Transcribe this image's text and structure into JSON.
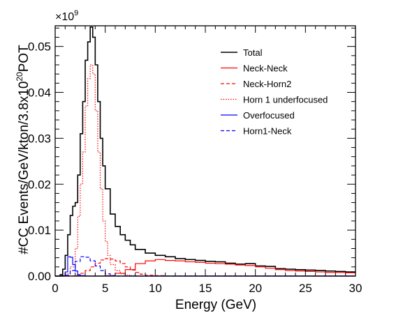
{
  "chart_data": {
    "type": "line",
    "title": "",
    "xlabel": "Energy (GeV)",
    "ylabel": "#CC Events/GeV/kton/3.8x10",
    "ylabel_exponent": "20",
    "ylabel_suffix": "POT",
    "y_multiplier": "×10",
    "y_multiplier_exponent": "9",
    "xlim": [
      0,
      30
    ],
    "ylim": [
      0,
      0.0545
    ],
    "x_ticks": [
      0,
      5,
      10,
      15,
      20,
      25,
      30
    ],
    "x_tick_labels": [
      "0",
      "5",
      "10",
      "15",
      "20",
      "25",
      "30"
    ],
    "y_ticks": [
      0,
      0.01,
      0.02,
      0.03,
      0.04,
      0.05
    ],
    "y_tick_labels": [
      "0.00",
      "0.01",
      "0.02",
      "0.03",
      "0.04",
      "0.05"
    ],
    "grid": false,
    "legend_position": "top-right",
    "series": [
      {
        "name": "Total",
        "color": "#000000",
        "dash": "solid",
        "x": [
          0.0,
          0.5,
          0.75,
          1.0,
          1.25,
          1.5,
          1.75,
          2.0,
          2.25,
          2.5,
          2.75,
          3.0,
          3.25,
          3.5,
          3.75,
          4.0,
          4.25,
          4.5,
          4.75,
          5.0,
          5.5,
          6.0,
          6.5,
          7.0,
          7.5,
          8.0,
          9.0,
          10.0,
          11.0,
          12.0,
          13.0,
          14.0,
          15.0,
          16.0,
          17.0,
          18.0,
          19.0,
          20.0,
          21.0,
          22.0,
          23.0,
          24.0,
          25.0,
          26.0,
          27.0,
          28.0,
          29.0,
          30.0
        ],
        "y": [
          0.0,
          0.0003,
          0.0015,
          0.0045,
          0.009,
          0.0132,
          0.0152,
          0.016,
          0.022,
          0.031,
          0.038,
          0.047,
          0.051,
          0.0542,
          0.052,
          0.046,
          0.038,
          0.03,
          0.024,
          0.019,
          0.0135,
          0.0108,
          0.009,
          0.0078,
          0.0068,
          0.0058,
          0.005,
          0.0045,
          0.0042,
          0.0038,
          0.0036,
          0.0034,
          0.0032,
          0.0031,
          0.0028,
          0.0026,
          0.0027,
          0.0022,
          0.0021,
          0.0016,
          0.0015,
          0.0014,
          0.0013,
          0.0012,
          0.0011,
          0.001,
          0.0009,
          0.0009
        ]
      },
      {
        "name": "Neck-Neck",
        "color": "#ff0000",
        "dash": "solid",
        "x": [
          0.0,
          4.0,
          5.0,
          6.0,
          7.0,
          8.0,
          9.0,
          10.0,
          11.0,
          12.0,
          13.0,
          14.0,
          15.0,
          16.0,
          17.0,
          18.0,
          19.0,
          20.0,
          21.0,
          22.0,
          23.0,
          24.0,
          25.0,
          26.0,
          27.0,
          28.0,
          29.0,
          30.0
        ],
        "y": [
          0.0,
          0.0,
          0.0001,
          0.0006,
          0.0014,
          0.0027,
          0.0033,
          0.0036,
          0.0034,
          0.0033,
          0.0031,
          0.003,
          0.0028,
          0.0027,
          0.0026,
          0.0024,
          0.0023,
          0.002,
          0.0017,
          0.0014,
          0.0012,
          0.0011,
          0.001,
          0.0009,
          0.0008,
          0.0008,
          0.0007,
          0.0007
        ]
      },
      {
        "name": "Neck-Horn2",
        "color": "#ff0000",
        "dash": "dashed",
        "x": [
          0.0,
          2.0,
          2.5,
          3.0,
          3.5,
          4.0,
          4.5,
          5.0,
          5.5,
          6.0,
          6.5,
          7.0,
          7.5,
          8.0,
          8.5,
          9.0,
          10.0,
          11.0,
          12.0,
          30.0
        ],
        "y": [
          0.0,
          0.0002,
          0.0006,
          0.0012,
          0.002,
          0.0028,
          0.0035,
          0.0038,
          0.0037,
          0.0033,
          0.0027,
          0.002,
          0.0013,
          0.0008,
          0.0004,
          0.0002,
          0.0001,
          0.0,
          0.0,
          0.0
        ]
      },
      {
        "name": "Horn 1 underfocused",
        "color": "#ff0000",
        "dash": "dotted",
        "x": [
          0.0,
          1.0,
          1.5,
          2.0,
          2.25,
          2.5,
          2.75,
          3.0,
          3.25,
          3.5,
          3.75,
          4.0,
          4.25,
          4.5,
          4.75,
          5.0,
          5.25,
          5.5,
          6.0,
          6.5,
          7.0,
          7.5,
          8.0,
          30.0
        ],
        "y": [
          0.0,
          0.0005,
          0.002,
          0.006,
          0.013,
          0.02,
          0.027,
          0.037,
          0.043,
          0.046,
          0.044,
          0.036,
          0.027,
          0.019,
          0.012,
          0.0075,
          0.0045,
          0.0025,
          0.0012,
          0.0005,
          0.0002,
          0.0001,
          0.0,
          0.0
        ]
      },
      {
        "name": "Overfocused",
        "color": "#0000ff",
        "dash": "solid",
        "x": [
          0.0,
          0.75,
          1.0,
          1.25,
          1.5,
          1.75,
          2.0,
          2.25,
          2.5,
          3.0,
          30.0
        ],
        "y": [
          0.0,
          0.0001,
          0.0009,
          0.0042,
          0.0041,
          0.0025,
          0.0011,
          0.0003,
          0.0001,
          0.0,
          0.0
        ]
      },
      {
        "name": "Horn1-Neck",
        "color": "#0000ff",
        "dash": "dashed",
        "x": [
          0.0,
          1.0,
          1.5,
          2.0,
          2.5,
          3.0,
          3.5,
          4.0,
          4.5,
          5.0,
          5.5,
          6.0,
          30.0
        ],
        "y": [
          0.0,
          0.0002,
          0.0012,
          0.0032,
          0.0042,
          0.0041,
          0.0033,
          0.0022,
          0.0012,
          0.0005,
          0.0001,
          0.0,
          0.0
        ]
      }
    ]
  }
}
